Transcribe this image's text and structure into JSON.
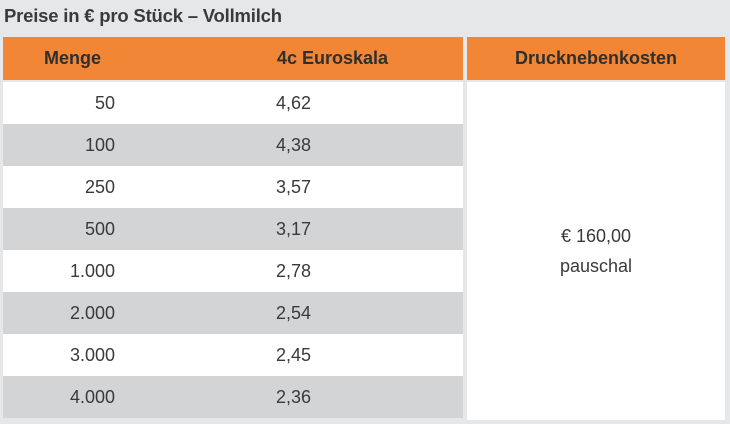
{
  "title": "Preise in € pro Stück – Vollmilch",
  "table": {
    "headers": {
      "menge": "Menge",
      "euroskala": "4c Euroskala",
      "drucknebenkosten": "Drucknebenkosten"
    },
    "rows": [
      {
        "menge": "50",
        "preis": "4,62"
      },
      {
        "menge": "100",
        "preis": "4,38"
      },
      {
        "menge": "250",
        "preis": "3,57"
      },
      {
        "menge": "500",
        "preis": "3,17"
      },
      {
        "menge": "1.000",
        "preis": "2,78"
      },
      {
        "menge": "2.000",
        "preis": "2,54"
      },
      {
        "menge": "3.000",
        "preis": "2,45"
      },
      {
        "menge": "4.000",
        "preis": "2,36"
      }
    ],
    "drucknebenkosten_value": {
      "line1": "€ 160,00",
      "line2": "pauschal"
    }
  },
  "colors": {
    "header_bg": "#f18636",
    "row_alt_bg": "#d3d4d5",
    "page_bg": "#e6e7e8"
  }
}
